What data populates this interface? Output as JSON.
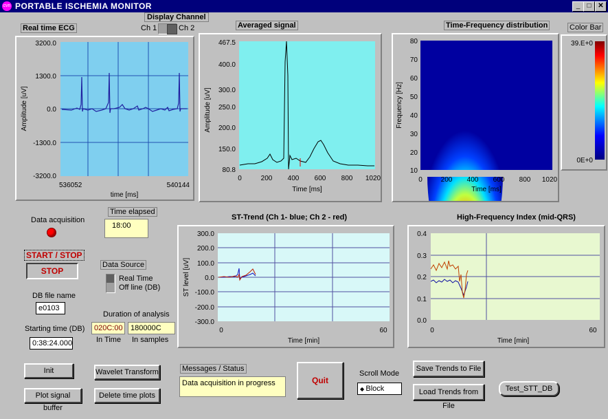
{
  "window": {
    "title": "PORTABLE ISCHEMIA MONITOR",
    "icon_name": "app-icon",
    "icon_text": "cvn",
    "controls": [
      "minimize-icon",
      "maximize-icon",
      "close-icon"
    ]
  },
  "display_channel": {
    "label": "Display Channel",
    "ch1": "Ch 1",
    "ch2": "Ch 2"
  },
  "ecg": {
    "title": "Real time ECG",
    "ylabel": "Amplitude [uV]",
    "xlabel": "time [ms]",
    "yticks": [
      "3200.0",
      "1300.0",
      "0.0",
      "-1300.0",
      "-3200.0"
    ],
    "xtick_left": "536052",
    "xtick_right": "540144"
  },
  "avg": {
    "title": "Averaged signal",
    "ylabel": "Amplitude [uV]",
    "xlabel": "Time [ms]",
    "yticks": [
      "467.5",
      "400.0",
      "300.0",
      "250.0",
      "200.0",
      "150.0",
      "80.8"
    ],
    "xticks": [
      "0",
      "200",
      "400",
      "600",
      "800",
      "1020"
    ]
  },
  "tf": {
    "title": "Time-Frequency distribution",
    "ylabel": "Frequency [Hz]",
    "xlabel": "Time [ms]",
    "yticks": [
      "80",
      "70",
      "60",
      "50",
      "40",
      "30",
      "20",
      "10"
    ],
    "xticks": [
      "0",
      "200",
      "400",
      "600",
      "800",
      "1020"
    ]
  },
  "colorbar": {
    "title": "Color Bar",
    "top": "39.E+0",
    "bottom": "0E+0"
  },
  "data_acq": {
    "label": "Data acquisition",
    "led_color": "#ff0000"
  },
  "time_elapsed": {
    "label": "Time elapsed",
    "value": "18:00"
  },
  "start_stop": {
    "label": "START / STOP",
    "state": "STOP"
  },
  "data_source": {
    "label": "Data Source",
    "opt1": "Real Time",
    "opt2": "Off line (DB)"
  },
  "db_file": {
    "label": "DB file name",
    "value": "e0103"
  },
  "duration": {
    "label": "Duration of analysis",
    "in_time_value": "020C:00",
    "in_samples_value": "180000C",
    "in_time_label": "In Time",
    "in_samples_label": "In samples"
  },
  "start_time": {
    "label": "Starting time (DB)",
    "value": "0:38:24.000"
  },
  "st_trend": {
    "title": "ST-Trend (Ch 1- blue; Ch 2 - red)",
    "ylabel": "ST level [uV]",
    "xlabel": "Time [min]",
    "yticks": [
      "300.0",
      "200.0",
      "100.0",
      "0.0",
      "-100.0",
      "-200.0",
      "-300.0"
    ],
    "xtick_left": "0",
    "xtick_right": "60"
  },
  "hf_index": {
    "title": "High-Frequency Index (mid-QRS)",
    "xlabel": "Time [min]",
    "yticks": [
      "0.4",
      "0.3",
      "0.2",
      "0.1",
      "0.0"
    ],
    "xtick_left": "0",
    "xtick_right": "60"
  },
  "buttons": {
    "init": "Init",
    "plot_buffer": "Plot signal buffer",
    "wavelet": "Wavelet Transform",
    "delete_plots": "Delete time plots",
    "quit": "Quit",
    "save_trends": "Save Trends to File",
    "load_trends": "Load Trends from File",
    "test_db": "Test_STT_DB"
  },
  "messages": {
    "label": "Messages / Status",
    "value": "Data acquisition in progress"
  },
  "scroll_mode": {
    "label": "Scroll Mode",
    "value": "Block"
  }
}
